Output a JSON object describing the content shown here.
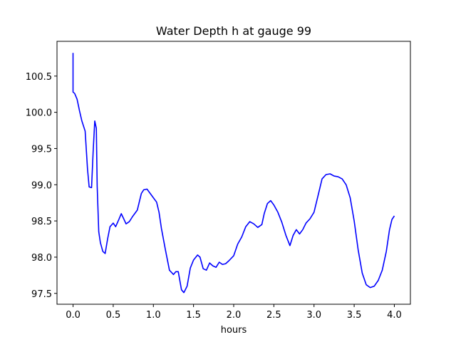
{
  "chart_data": {
    "type": "line",
    "title": "Water Depth h at gauge 99",
    "xlabel": "hours",
    "ylabel": "",
    "xlim": [
      -0.2,
      4.2
    ],
    "ylim": [
      97.35,
      100.98
    ],
    "xticks": [
      0.0,
      0.5,
      1.0,
      1.5,
      2.0,
      2.5,
      3.0,
      3.5,
      4.0
    ],
    "xtick_labels": [
      "0.0",
      "0.5",
      "1.0",
      "1.5",
      "2.0",
      "2.5",
      "3.0",
      "3.5",
      "4.0"
    ],
    "yticks": [
      97.5,
      98.0,
      98.5,
      99.0,
      99.5,
      100.0,
      100.5
    ],
    "ytick_labels": [
      "97.5",
      "98.0",
      "98.5",
      "99.0",
      "99.5",
      "100.0",
      "100.5"
    ],
    "grid": false,
    "legend": "none",
    "series": [
      {
        "color": "#0000ff",
        "x": [
          0.0,
          0.0,
          0.02,
          0.05,
          0.08,
          0.11,
          0.15,
          0.18,
          0.2,
          0.23,
          0.25,
          0.27,
          0.29,
          0.3,
          0.32,
          0.34,
          0.37,
          0.4,
          0.43,
          0.46,
          0.5,
          0.53,
          0.57,
          0.6,
          0.63,
          0.66,
          0.7,
          0.74,
          0.8,
          0.85,
          0.88,
          0.92,
          0.96,
          1.0,
          1.04,
          1.07,
          1.1,
          1.15,
          1.2,
          1.25,
          1.28,
          1.31,
          1.35,
          1.38,
          1.42,
          1.46,
          1.5,
          1.55,
          1.58,
          1.62,
          1.66,
          1.7,
          1.74,
          1.78,
          1.82,
          1.86,
          1.9,
          1.94,
          2.0,
          2.05,
          2.1,
          2.15,
          2.2,
          2.25,
          2.3,
          2.35,
          2.38,
          2.42,
          2.46,
          2.5,
          2.55,
          2.6,
          2.65,
          2.7,
          2.74,
          2.78,
          2.82,
          2.86,
          2.9,
          2.95,
          3.0,
          3.05,
          3.1,
          3.15,
          3.2,
          3.25,
          3.3,
          3.35,
          3.4,
          3.45,
          3.5,
          3.55,
          3.6,
          3.65,
          3.7,
          3.75,
          3.8,
          3.85,
          3.9,
          3.94,
          3.97,
          4.0
        ],
        "y": [
          100.82,
          100.28,
          100.26,
          100.18,
          100.02,
          99.88,
          99.74,
          99.22,
          98.97,
          98.96,
          99.45,
          99.88,
          99.78,
          98.98,
          98.35,
          98.2,
          98.08,
          98.05,
          98.25,
          98.42,
          98.47,
          98.42,
          98.52,
          98.6,
          98.53,
          98.46,
          98.49,
          98.56,
          98.65,
          98.88,
          98.93,
          98.94,
          98.88,
          98.82,
          98.76,
          98.62,
          98.4,
          98.1,
          97.82,
          97.76,
          97.8,
          97.8,
          97.55,
          97.51,
          97.6,
          97.85,
          97.96,
          98.03,
          98.0,
          97.84,
          97.82,
          97.92,
          97.88,
          97.86,
          97.93,
          97.9,
          97.91,
          97.95,
          98.02,
          98.18,
          98.28,
          98.42,
          98.49,
          98.46,
          98.41,
          98.45,
          98.6,
          98.74,
          98.78,
          98.72,
          98.62,
          98.48,
          98.3,
          98.16,
          98.3,
          98.38,
          98.32,
          98.38,
          98.47,
          98.53,
          98.62,
          98.85,
          99.08,
          99.14,
          99.15,
          99.12,
          99.11,
          99.08,
          99.0,
          98.82,
          98.5,
          98.1,
          97.78,
          97.62,
          97.58,
          97.6,
          97.68,
          97.82,
          98.08,
          98.38,
          98.52,
          98.57
        ]
      }
    ]
  }
}
